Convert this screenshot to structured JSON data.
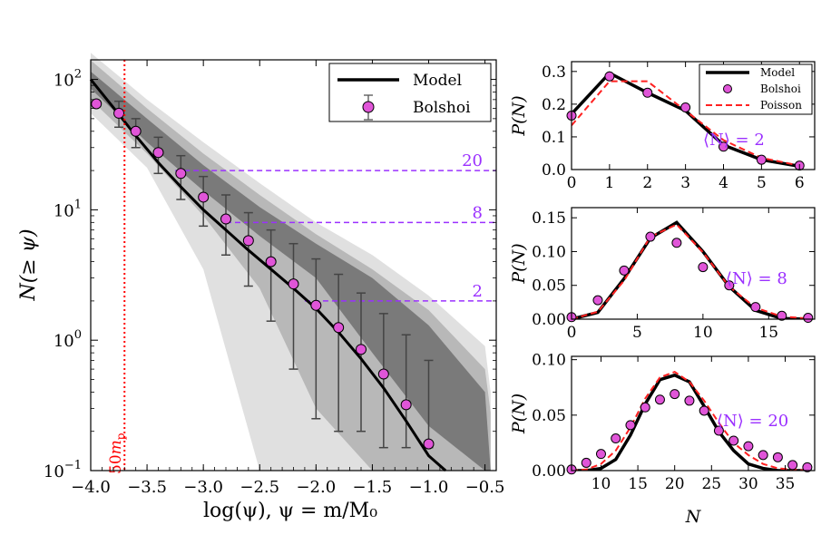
{
  "chart_data": [
    {
      "type": "line",
      "xlabel": "log(ψ),  ψ = m/M₀",
      "ylabel": "N(≥ ψ)",
      "xlim": [
        -4.0,
        -0.4
      ],
      "ylim_log10": [
        -1,
        2.15
      ],
      "yscale": "log",
      "xticks": [
        "−4.0",
        "−3.5",
        "−3.0",
        "−2.5",
        "−2.0",
        "−1.5",
        "−1.0",
        "−0.5"
      ],
      "yticks": [
        {
          "base": "10",
          "exp": "2"
        },
        {
          "base": "10",
          "exp": "1"
        },
        {
          "base": "10",
          "exp": "0"
        },
        {
          "base": "10",
          "exp": "−1"
        }
      ],
      "legend": {
        "location": "top-right",
        "entries": [
          "Model",
          "Bolshoi"
        ]
      },
      "colors": {
        "model": "#000000",
        "bolshoi": "#e055d8",
        "threshold": "#9b30ff",
        "mass_limit": "#ff0000"
      },
      "series": [
        {
          "name": "Model",
          "x": [
            -4.0,
            -3.8,
            -3.6,
            -3.4,
            -3.2,
            -3.0,
            -2.8,
            -2.6,
            -2.4,
            -2.2,
            -2.0,
            -1.8,
            -1.6,
            -1.4,
            -1.2,
            -1.0,
            -0.85
          ],
          "y": [
            100,
            61,
            37,
            23,
            15,
            10,
            7,
            4.9,
            3.5,
            2.5,
            1.75,
            1.15,
            0.72,
            0.43,
            0.24,
            0.13,
            0.1
          ]
        },
        {
          "name": "Bolshoi",
          "x": [
            -3.95,
            -3.75,
            -3.6,
            -3.4,
            -3.2,
            -3.0,
            -2.8,
            -2.6,
            -2.4,
            -2.2,
            -2.0,
            -1.8,
            -1.6,
            -1.4,
            -1.2,
            -1.0
          ],
          "y": [
            65,
            55,
            40,
            27.5,
            19,
            12.5,
            8.5,
            5.8,
            4.0,
            2.7,
            1.85,
            1.25,
            0.85,
            0.55,
            0.32,
            0.16
          ],
          "err_low": [
            null,
            43,
            30,
            19,
            12,
            7.5,
            4.5,
            2.6,
            1.4,
            0.6,
            0.25,
            0.2,
            0.2,
            0.15,
            0.15,
            0.15
          ],
          "err_high": [
            null,
            68,
            50,
            36,
            26,
            18,
            13,
            9.5,
            7,
            5.5,
            4.2,
            3.2,
            2.3,
            1.6,
            1.1,
            0.7
          ]
        }
      ],
      "bands": {
        "x": [
          -4.0,
          -3.5,
          -3.0,
          -2.5,
          -2.0,
          -1.5,
          -1.0,
          -0.5,
          -0.45
        ],
        "light_upper": [
          160,
          70,
          33,
          16,
          8,
          4.5,
          2.2,
          0.9,
          0.4
        ],
        "mid_upper": [
          140,
          60,
          27,
          13,
          6.5,
          3.5,
          1.7,
          0.6,
          0.28
        ],
        "dark_upper": [
          115,
          50,
          22,
          10.5,
          5.5,
          3.0,
          1.3,
          0.4,
          0.1
        ],
        "dark_lower": [
          85,
          33,
          14,
          6.3,
          3.0,
          0.8,
          0.22,
          0.1,
          0.1
        ],
        "mid_lower": [
          70,
          27,
          9,
          2.5,
          0.3,
          0.1,
          0.1,
          0.1,
          0.1
        ],
        "light_lower": [
          55,
          21,
          3.5,
          0.1,
          0.1,
          0.1,
          0.1,
          0.1,
          0.1
        ]
      },
      "thresholds": [
        {
          "label": "20",
          "y": 20,
          "x_start": -3.25
        },
        {
          "label": "8",
          "y": 8,
          "x_start": -2.8
        },
        {
          "label": "2",
          "y": 2,
          "x_start": -2.1
        }
      ],
      "mass_limit": {
        "x": -3.7,
        "label_base": "50",
        "label_sub": "p",
        "label_italic": "m"
      }
    },
    {
      "type": "line",
      "ylabel": "P(N)",
      "xlim": [
        0,
        6.4
      ],
      "ylim": [
        0,
        0.33
      ],
      "xticks": [
        "0",
        "1",
        "2",
        "3",
        "4",
        "5",
        "6"
      ],
      "yticks": [
        "0.0",
        "0.1",
        "0.2",
        "0.3"
      ],
      "annotation": "⟨N⟩ = 2",
      "legend": {
        "location": "top-right",
        "entries": [
          "Model",
          "Bolshoi",
          "Poisson"
        ]
      },
      "series": [
        {
          "name": "Model",
          "x": [
            0,
            1,
            2,
            3,
            4,
            5,
            6
          ],
          "y": [
            0.17,
            0.295,
            0.235,
            0.18,
            0.075,
            0.03,
            0.01
          ]
        },
        {
          "name": "Bolshoi",
          "x": [
            0,
            1,
            2,
            3,
            4,
            5,
            6
          ],
          "y": [
            0.165,
            0.285,
            0.235,
            0.19,
            0.07,
            0.03,
            0.012
          ]
        },
        {
          "name": "Poisson",
          "x": [
            0,
            1,
            2,
            3,
            4,
            5,
            6
          ],
          "y": [
            0.135,
            0.27,
            0.27,
            0.18,
            0.09,
            0.036,
            0.012
          ]
        }
      ]
    },
    {
      "type": "line",
      "ylabel": "P(N)",
      "xlim": [
        0,
        18.5
      ],
      "ylim": [
        0,
        0.165
      ],
      "xticks": [
        "0",
        "5",
        "10",
        "15"
      ],
      "yticks": [
        "0.00",
        "0.05",
        "0.10",
        "0.15"
      ],
      "annotation": "⟨N⟩ = 8",
      "series": [
        {
          "name": "Model",
          "x": [
            0,
            2,
            4,
            6,
            8,
            10,
            12,
            14,
            16,
            18
          ],
          "y": [
            0.0,
            0.01,
            0.06,
            0.12,
            0.143,
            0.1,
            0.048,
            0.013,
            0.001,
            0.0
          ]
        },
        {
          "name": "Bolshoi",
          "x": [
            0,
            2,
            4,
            6,
            8,
            10,
            12,
            14,
            16,
            18
          ],
          "y": [
            0.003,
            0.028,
            0.072,
            0.122,
            0.113,
            0.077,
            0.05,
            0.018,
            0.005,
            0.002
          ]
        },
        {
          "name": "Poisson",
          "x": [
            0,
            2,
            4,
            6,
            8,
            10,
            12,
            14,
            16,
            18
          ],
          "y": [
            0.0,
            0.011,
            0.057,
            0.122,
            0.14,
            0.099,
            0.048,
            0.017,
            0.004,
            0.001
          ]
        }
      ]
    },
    {
      "type": "line",
      "ylabel": "P(N)",
      "xlabel": "N",
      "xlim": [
        6,
        39
      ],
      "ylim": [
        0,
        0.103
      ],
      "xticks": [
        "10",
        "15",
        "20",
        "25",
        "30",
        "35"
      ],
      "yticks": [
        "0.00",
        "0.05",
        "0.10"
      ],
      "annotation": "⟨N⟩ = 20",
      "series": [
        {
          "name": "Model",
          "x": [
            6,
            8,
            10,
            12,
            14,
            16,
            18,
            20,
            22,
            24,
            26,
            28,
            30,
            32,
            34,
            36,
            38
          ],
          "y": [
            0.0,
            0.0,
            0.002,
            0.01,
            0.032,
            0.06,
            0.082,
            0.086,
            0.08,
            0.058,
            0.035,
            0.018,
            0.006,
            0.002,
            0.0,
            0.0,
            0.0
          ]
        },
        {
          "name": "Bolshoi",
          "x": [
            6,
            8,
            10,
            12,
            14,
            16,
            18,
            20,
            22,
            24,
            26,
            28,
            30,
            32,
            34,
            36,
            38
          ],
          "y": [
            0.001,
            0.007,
            0.015,
            0.029,
            0.041,
            0.057,
            0.064,
            0.069,
            0.063,
            0.054,
            0.036,
            0.027,
            0.022,
            0.014,
            0.012,
            0.005,
            0.003
          ]
        },
        {
          "name": "Poisson",
          "x": [
            6,
            8,
            10,
            12,
            14,
            16,
            18,
            20,
            22,
            24,
            26,
            28,
            30,
            32,
            34,
            36,
            38
          ],
          "y": [
            0.0,
            0.001,
            0.006,
            0.018,
            0.039,
            0.065,
            0.084,
            0.089,
            0.08,
            0.063,
            0.043,
            0.025,
            0.014,
            0.006,
            0.002,
            0.001,
            0.0
          ]
        }
      ]
    }
  ]
}
